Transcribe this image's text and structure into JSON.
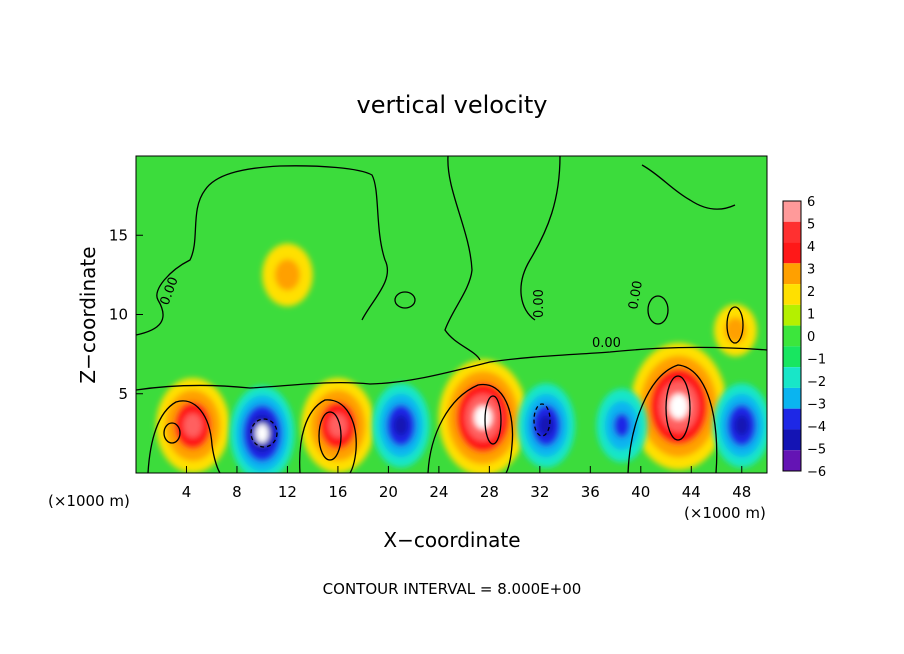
{
  "chart_data": {
    "type": "heatmap",
    "title": "vertical velocity",
    "xlabel": "X−coordinate",
    "ylabel": "Z−coordinate",
    "x_unit_label": "(×1000 m)",
    "z_unit_label": "(×1000 m)",
    "xlim": [
      0,
      50
    ],
    "ylim": [
      0,
      20
    ],
    "x_ticks": [
      4,
      8,
      12,
      16,
      20,
      24,
      28,
      32,
      36,
      40,
      44,
      48
    ],
    "y_ticks": [
      5,
      10,
      15
    ],
    "colorbar": {
      "levels": [
        6,
        5,
        4,
        3,
        2,
        1,
        0,
        -1,
        -2,
        -3,
        -4,
        -5,
        -6
      ],
      "labels": [
        "6",
        "5",
        "4",
        "3",
        "2",
        "1",
        "0",
        "−1",
        "−2",
        "−3",
        "−4",
        "−5",
        "−6"
      ],
      "colors": [
        "#ff9a9a",
        "#ff3030",
        "#ff1818",
        "#ffa000",
        "#ffe000",
        "#b4f000",
        "#3ce63c",
        "#18e660",
        "#18e6c8",
        "#0ab4f0",
        "#1e28e6",
        "#1414b4",
        "#6414b4"
      ]
    },
    "contour_label": "0.00",
    "contour_interval_text": "CONTOUR INTERVAL = 8.000E+00",
    "updrafts": [
      {
        "x": 4.5,
        "z": 3.0,
        "value": 7
      },
      {
        "x": 16.0,
        "z": 3.0,
        "value": 7
      },
      {
        "x": 27.5,
        "z": 3.5,
        "value": 9
      },
      {
        "x": 43.0,
        "z": 4.2,
        "value": 10
      },
      {
        "x": 12.0,
        "z": 12.5,
        "value": 4
      },
      {
        "x": 47.5,
        "z": 9.0,
        "value": 3
      }
    ],
    "downdrafts": [
      {
        "x": 10.0,
        "z": 2.5,
        "value": -7
      },
      {
        "x": 21.0,
        "z": 3.0,
        "value": -6
      },
      {
        "x": 32.5,
        "z": 3.0,
        "value": -6
      },
      {
        "x": 38.5,
        "z": 3.0,
        "value": -5
      },
      {
        "x": 48.0,
        "z": 3.0,
        "value": -6
      }
    ]
  }
}
